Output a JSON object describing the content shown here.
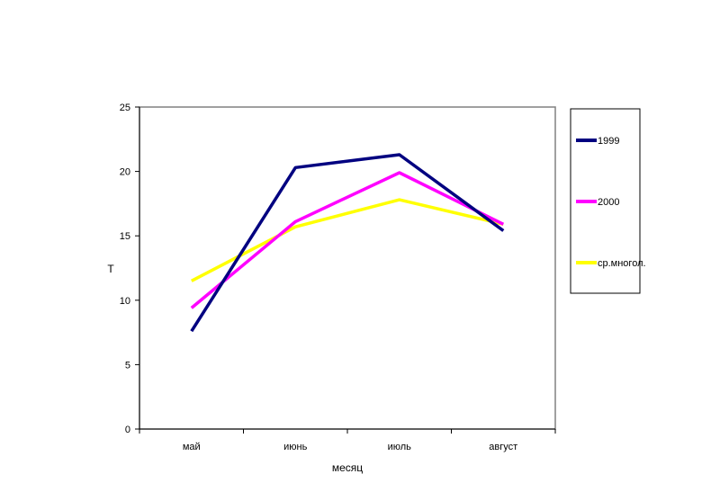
{
  "chart_data": {
    "type": "line",
    "categories": [
      "май",
      "июнь",
      "июль",
      "август"
    ],
    "series": [
      {
        "name": "1999",
        "color": "#000080",
        "values": [
          7.6,
          20.3,
          21.3,
          15.4
        ]
      },
      {
        "name": "2000",
        "color": "#FF00FF",
        "values": [
          9.4,
          16.1,
          19.9,
          15.9
        ]
      },
      {
        "name": "ср.многол.",
        "color": "#FFFF00",
        "values": [
          11.5,
          15.7,
          17.8,
          15.9
        ]
      }
    ],
    "xlabel": "месяц",
    "ylabel": "Т",
    "ylim": [
      0,
      25
    ],
    "yticks": [
      "0",
      "5",
      "10",
      "15",
      "20",
      "25"
    ],
    "grid": false,
    "legend_position": "right"
  }
}
